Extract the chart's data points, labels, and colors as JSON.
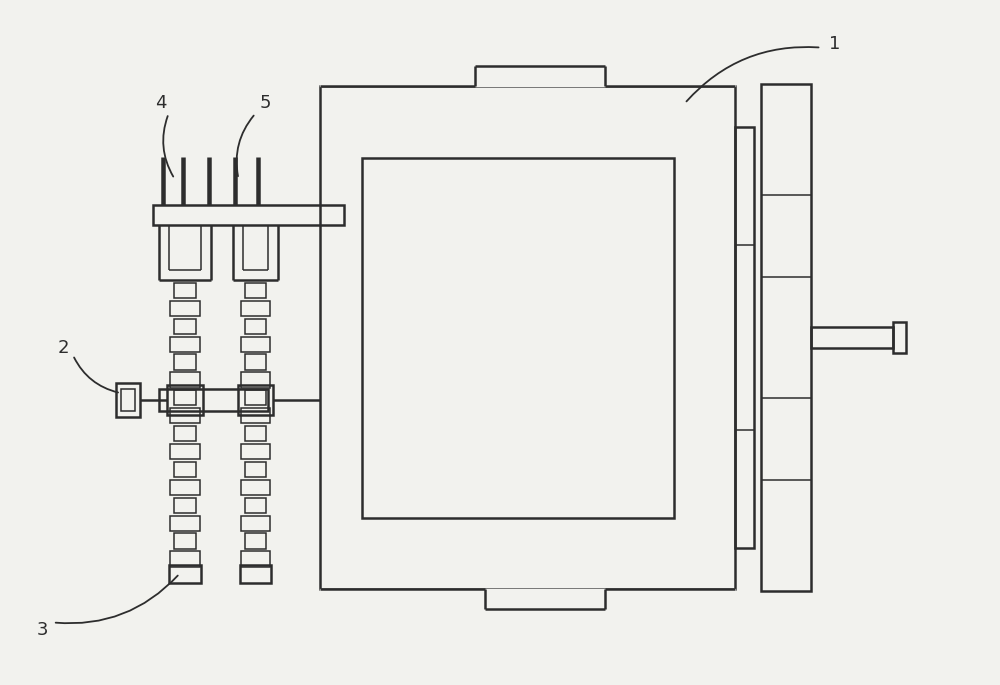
{
  "bg_color": "#f2f2ee",
  "line_color": "#2d2d2d",
  "lw_main": 1.8,
  "lw_thin": 1.1,
  "label_fontsize": 13,
  "figw": 10.0,
  "figh": 6.85,
  "dpi": 100
}
